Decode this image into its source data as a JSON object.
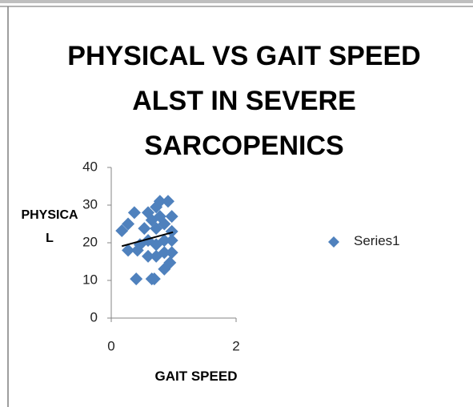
{
  "chart_data": {
    "type": "scatter",
    "title": "PHYSICAL VS GAIT SPEED ALST IN SEVERE SARCOPENICS",
    "x_label": "GAIT SPEED",
    "y_label": "PHYSICAL",
    "series": [
      {
        "name": "Series1",
        "color": "#4f81bd",
        "x": [
          0.17,
          0.27,
          0.37,
          0.27,
          0.42,
          0.4,
          0.65,
          0.69,
          0.59,
          0.72,
          0.78,
          0.91,
          0.97,
          0.97,
          0.97,
          0.97,
          0.94,
          0.85,
          0.72,
          0.59,
          0.59,
          0.53,
          0.72,
          0.85,
          0.85,
          0.72,
          0.85,
          0.46,
          0.78,
          0.65
        ],
        "values": [
          23.2,
          25,
          28,
          18,
          18,
          10.4,
          10.4,
          10.4,
          28,
          29.5,
          31,
          31,
          27,
          23,
          20.6,
          17.4,
          14.7,
          13,
          16.4,
          16.4,
          20.6,
          23.8,
          23.8,
          25,
          20.6,
          19.5,
          17.4,
          19.5,
          27,
          26
        ]
      }
    ],
    "trendline": {
      "x": [
        0.17,
        0.99
      ],
      "values": [
        19.1,
        22.8
      ],
      "color": "#000000"
    },
    "xlim": [
      0,
      2
    ],
    "xticks": [
      0,
      2
    ],
    "ylim": [
      0,
      40
    ],
    "yticks": [
      0,
      10,
      20,
      30,
      40
    ],
    "legend": "right"
  }
}
